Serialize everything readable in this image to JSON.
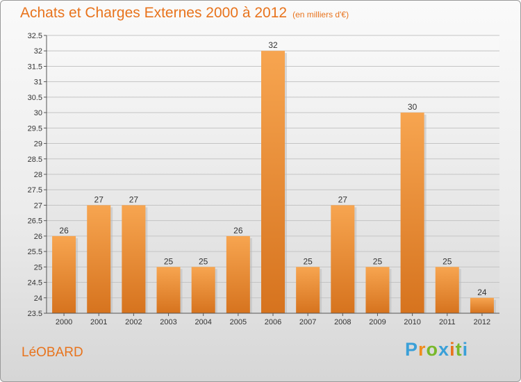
{
  "title": "Achats et Charges Externes 2000 à 2012",
  "unit": "(en milliers d'€)",
  "town": "LéOBARD",
  "logo": {
    "letters": [
      "P",
      "r",
      "o",
      "x",
      "i",
      "t",
      "i"
    ],
    "colors": [
      "#3aa0d8",
      "#f08c1c",
      "#78b82a",
      "#3aa0d8",
      "#e8731c",
      "#78b82a",
      "#3aa0d8"
    ]
  },
  "chart_data": {
    "type": "bar",
    "categories": [
      "2000",
      "2001",
      "2002",
      "2003",
      "2004",
      "2005",
      "2006",
      "2007",
      "2008",
      "2009",
      "2010",
      "2011",
      "2012"
    ],
    "values": [
      26,
      27,
      27,
      25,
      25,
      26,
      32,
      25,
      27,
      25,
      30,
      25,
      24
    ],
    "ylim": [
      23.5,
      32.5
    ],
    "yticks": [
      "23.5",
      "24",
      "24.5",
      "25",
      "25.5",
      "26",
      "26.5",
      "27",
      "27.5",
      "28",
      "28.5",
      "29",
      "29.5",
      "30",
      "30.5",
      "31",
      "31.5",
      "32",
      "32.5"
    ],
    "grid": true,
    "bar_color": "#f08c1c",
    "data_labels": true
  }
}
